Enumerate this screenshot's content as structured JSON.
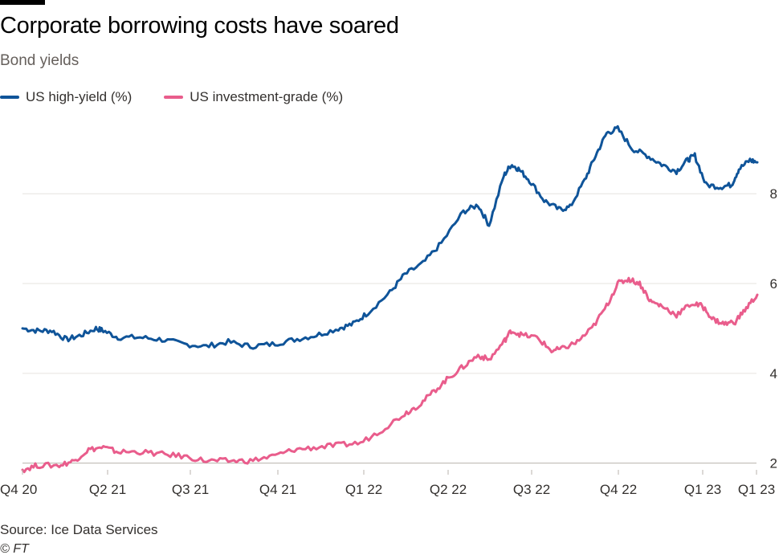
{
  "header": {
    "title": "Corporate borrowing costs have soared",
    "subtitle": "Bond yields"
  },
  "legend": [
    {
      "label": "US high-yield (%)",
      "color": "#0f5499"
    },
    {
      "label": "US investment-grade (%)",
      "color": "#e95d8c"
    }
  ],
  "footer": {
    "source": "Source: Ice Data Services",
    "credit": "© FT"
  },
  "chart_data": {
    "type": "line",
    "title": "Corporate borrowing costs have soared",
    "subtitle": "Bond yields",
    "xlabel": "",
    "ylabel": "",
    "x_tick_labels": [
      "Q4 20",
      "Q2 21",
      "Q3 21",
      "Q4 21",
      "Q1 22",
      "Q2 22",
      "Q3 22",
      "Q4 22",
      "Q1 23",
      "Q1 23"
    ],
    "y_ticks": [
      2,
      4,
      6,
      8
    ],
    "ylim": [
      1.85,
      9.9
    ],
    "xlim": [
      0,
      1
    ],
    "grid": true,
    "legend_position": "top-left",
    "series": [
      {
        "name": "US high-yield (%)",
        "color": "#0f5499",
        "points": [
          [
            0.0,
            5.0
          ],
          [
            0.02,
            4.95
          ],
          [
            0.04,
            4.95
          ],
          [
            0.06,
            4.75
          ],
          [
            0.08,
            4.85
          ],
          [
            0.1,
            5.0
          ],
          [
            0.11,
            4.95
          ],
          [
            0.13,
            4.8
          ],
          [
            0.16,
            4.8
          ],
          [
            0.19,
            4.75
          ],
          [
            0.22,
            4.65
          ],
          [
            0.25,
            4.6
          ],
          [
            0.28,
            4.7
          ],
          [
            0.31,
            4.6
          ],
          [
            0.34,
            4.65
          ],
          [
            0.37,
            4.75
          ],
          [
            0.4,
            4.85
          ],
          [
            0.43,
            5.0
          ],
          [
            0.45,
            5.1
          ],
          [
            0.47,
            5.35
          ],
          [
            0.5,
            5.8
          ],
          [
            0.52,
            6.2
          ],
          [
            0.545,
            6.45
          ],
          [
            0.57,
            6.9
          ],
          [
            0.6,
            7.6
          ],
          [
            0.62,
            7.75
          ],
          [
            0.635,
            7.3
          ],
          [
            0.655,
            8.4
          ],
          [
            0.665,
            8.65
          ],
          [
            0.675,
            8.55
          ],
          [
            0.69,
            8.3
          ],
          [
            0.71,
            7.85
          ],
          [
            0.73,
            7.65
          ],
          [
            0.745,
            7.7
          ],
          [
            0.765,
            8.3
          ],
          [
            0.78,
            8.85
          ],
          [
            0.795,
            9.35
          ],
          [
            0.81,
            9.45
          ],
          [
            0.83,
            9.0
          ],
          [
            0.85,
            8.85
          ],
          [
            0.87,
            8.65
          ],
          [
            0.89,
            8.5
          ],
          [
            0.905,
            8.75
          ],
          [
            0.915,
            8.85
          ],
          [
            0.93,
            8.2
          ],
          [
            0.95,
            8.15
          ],
          [
            0.965,
            8.2
          ],
          [
            0.975,
            8.55
          ],
          [
            0.99,
            8.75
          ],
          [
            1.0,
            8.7
          ]
        ]
      },
      {
        "name": "US investment-grade (%)",
        "color": "#e95d8c",
        "points": [
          [
            0.0,
            1.85
          ],
          [
            0.02,
            1.95
          ],
          [
            0.05,
            1.95
          ],
          [
            0.07,
            2.05
          ],
          [
            0.09,
            2.3
          ],
          [
            0.11,
            2.35
          ],
          [
            0.13,
            2.25
          ],
          [
            0.16,
            2.25
          ],
          [
            0.19,
            2.2
          ],
          [
            0.22,
            2.15
          ],
          [
            0.25,
            2.05
          ],
          [
            0.28,
            2.05
          ],
          [
            0.31,
            2.05
          ],
          [
            0.34,
            2.15
          ],
          [
            0.37,
            2.3
          ],
          [
            0.4,
            2.35
          ],
          [
            0.43,
            2.4
          ],
          [
            0.46,
            2.45
          ],
          [
            0.49,
            2.75
          ],
          [
            0.52,
            3.1
          ],
          [
            0.54,
            3.3
          ],
          [
            0.56,
            3.6
          ],
          [
            0.58,
            3.9
          ],
          [
            0.6,
            4.15
          ],
          [
            0.62,
            4.4
          ],
          [
            0.635,
            4.3
          ],
          [
            0.655,
            4.7
          ],
          [
            0.665,
            4.95
          ],
          [
            0.68,
            4.85
          ],
          [
            0.7,
            4.8
          ],
          [
            0.72,
            4.5
          ],
          [
            0.735,
            4.55
          ],
          [
            0.755,
            4.7
          ],
          [
            0.775,
            5.0
          ],
          [
            0.795,
            5.5
          ],
          [
            0.81,
            6.0
          ],
          [
            0.825,
            6.1
          ],
          [
            0.84,
            6.0
          ],
          [
            0.855,
            5.6
          ],
          [
            0.87,
            5.5
          ],
          [
            0.89,
            5.3
          ],
          [
            0.91,
            5.55
          ],
          [
            0.925,
            5.5
          ],
          [
            0.94,
            5.2
          ],
          [
            0.955,
            5.1
          ],
          [
            0.97,
            5.15
          ],
          [
            0.985,
            5.45
          ],
          [
            1.0,
            5.75
          ]
        ]
      }
    ]
  }
}
